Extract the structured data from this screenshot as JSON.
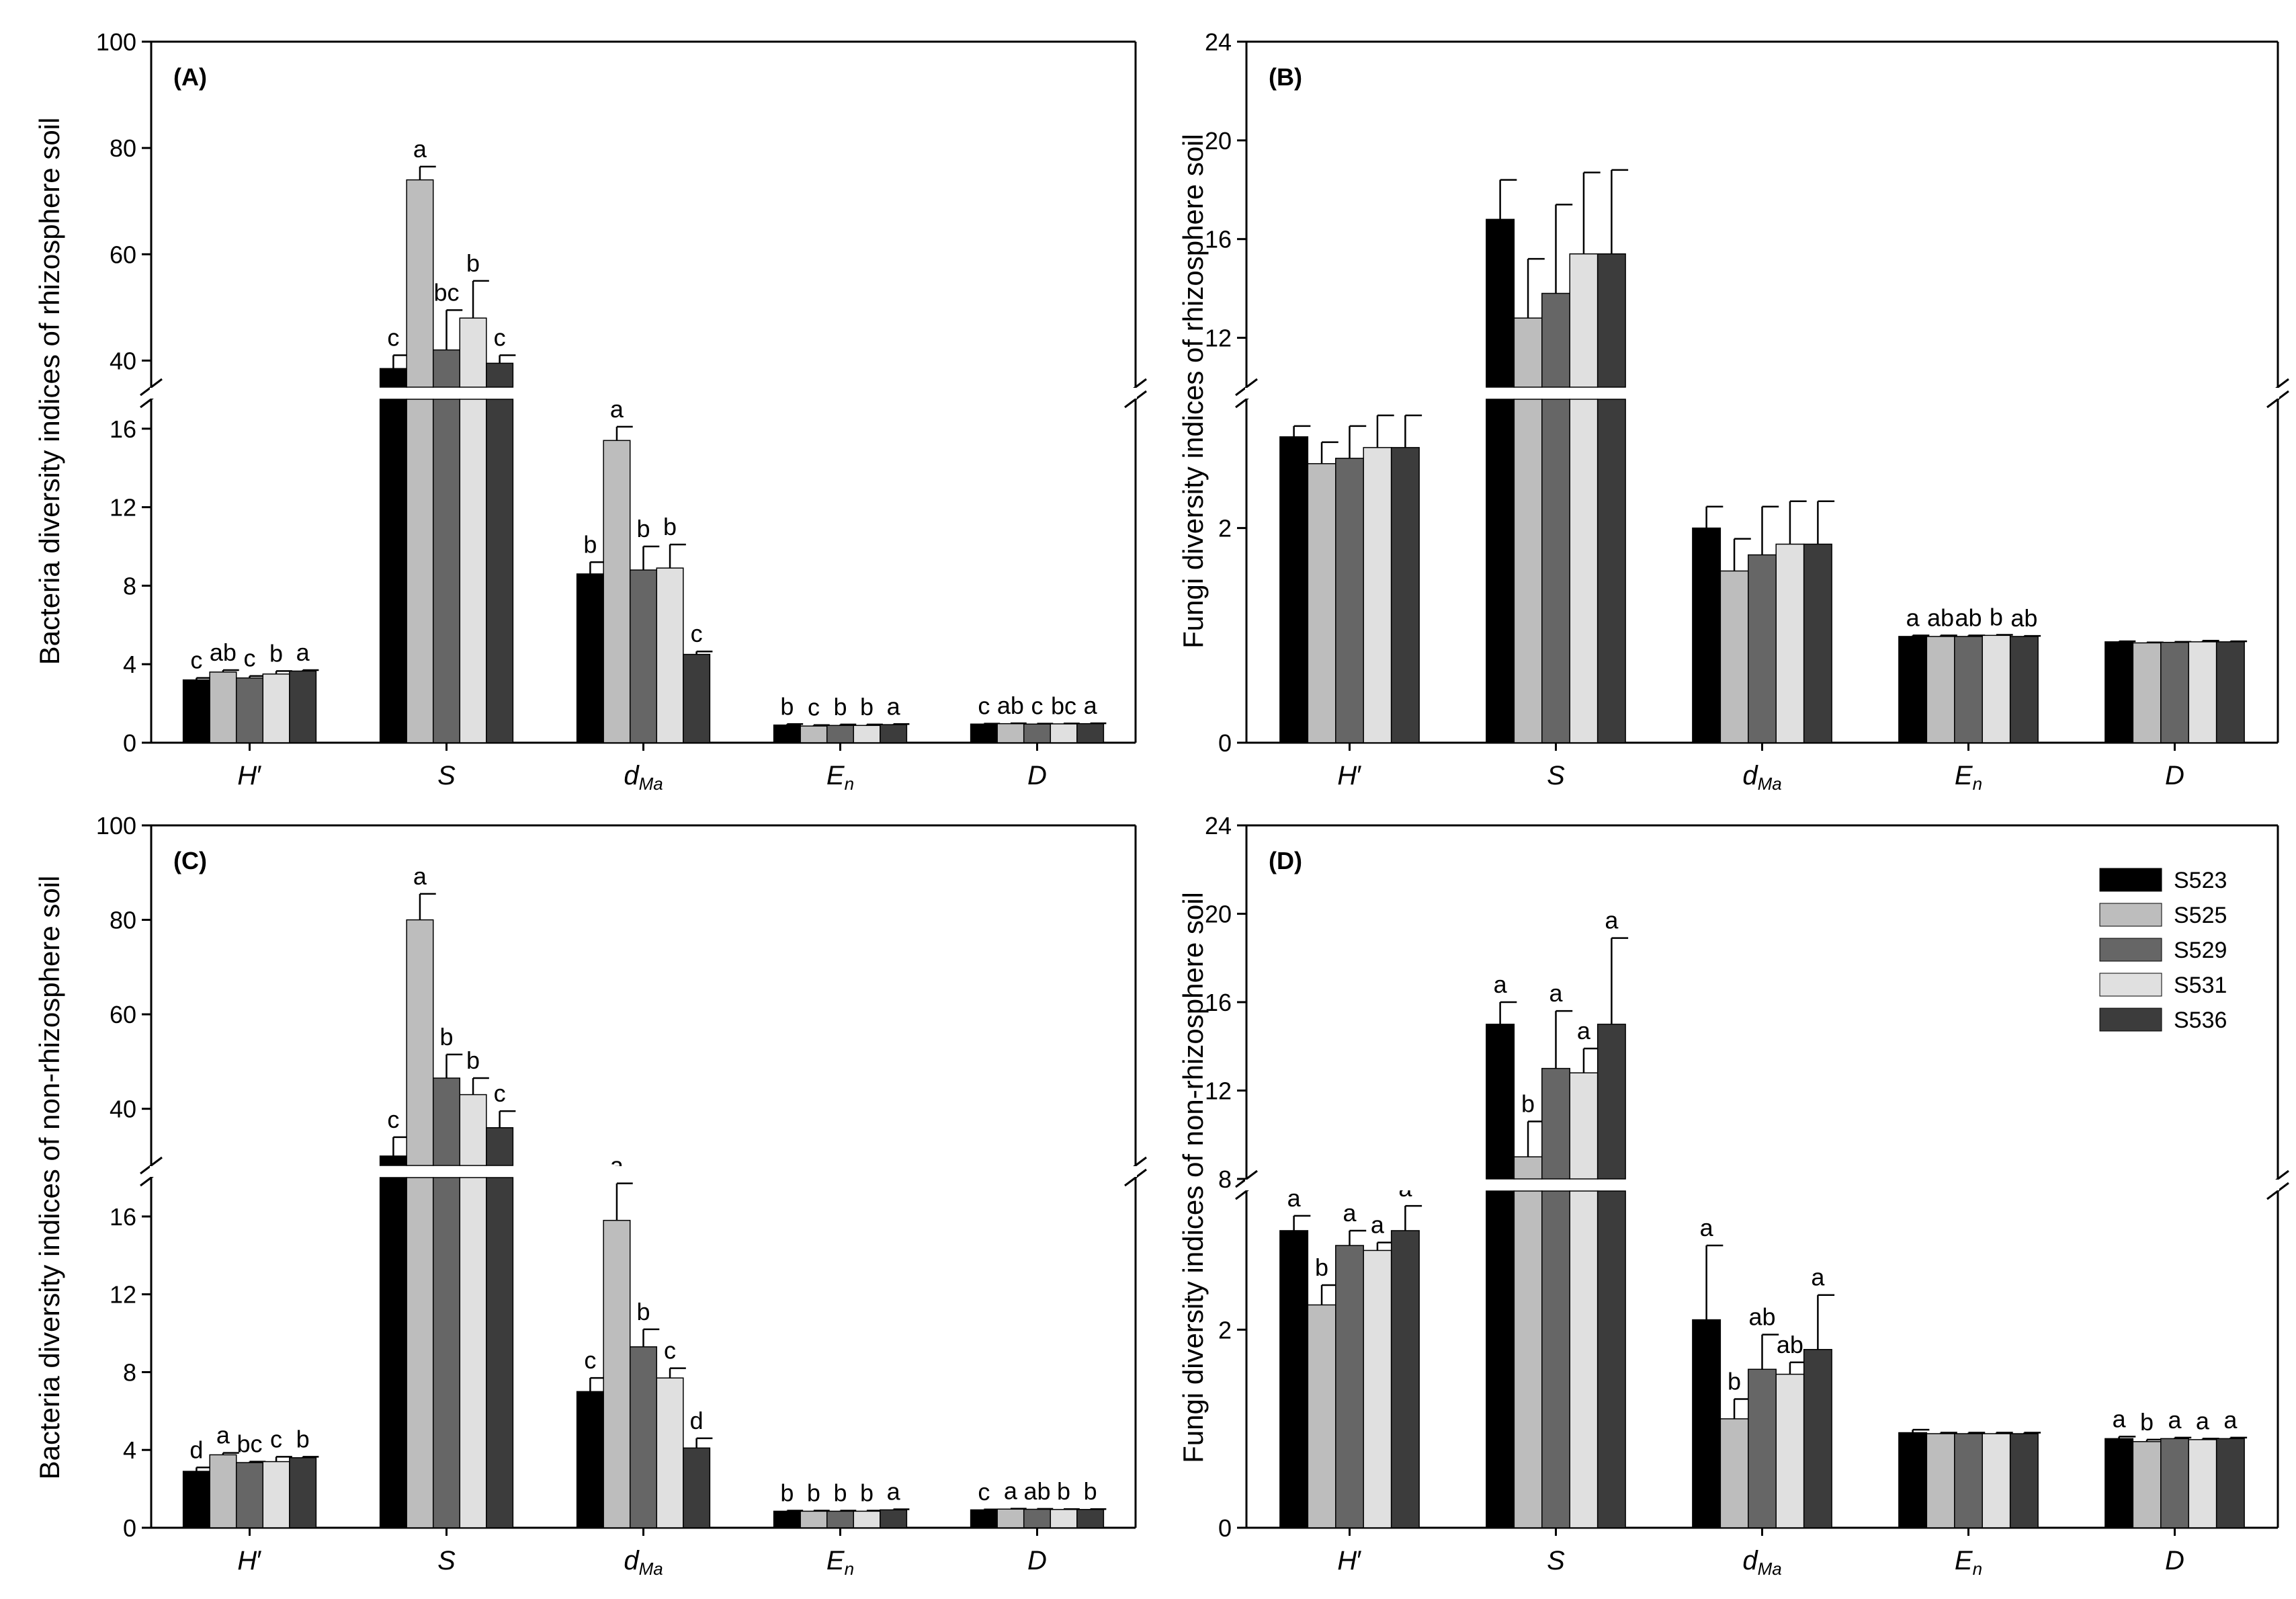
{
  "legend": {
    "series": [
      {
        "name": "S523",
        "color": "#000000"
      },
      {
        "name": "S525",
        "color": "#bdbdbd"
      },
      {
        "name": "S529",
        "color": "#666666"
      },
      {
        "name": "S531",
        "color": "#e0e0e0"
      },
      {
        "name": "S536",
        "color": "#3c3c3c"
      }
    ]
  },
  "chart_data": [
    {
      "panel": "(A)",
      "type": "bar",
      "ylabel": "Bacteria diversity indices of rhizosphere soil",
      "categories": [
        {
          "base": "H",
          "sub": "",
          "suffix": "′"
        },
        {
          "base": "S",
          "sub": "",
          "suffix": ""
        },
        {
          "base": "d",
          "sub": "Ma",
          "suffix": ""
        },
        {
          "base": "E",
          "sub": "n",
          "suffix": ""
        },
        {
          "base": "D",
          "sub": "",
          "suffix": ""
        }
      ],
      "lower_range": [
        0,
        17.5
      ],
      "upper_range": [
        35,
        100
      ],
      "lower_ticks": [
        0,
        4,
        8,
        12,
        16
      ],
      "upper_ticks": [
        40,
        60,
        80,
        100
      ],
      "series": [
        {
          "name": "S523",
          "values": [
            3.2,
            38.5,
            8.6,
            0.9,
            0.95
          ],
          "errors": [
            0.1,
            2.5,
            0.6,
            0.05,
            0.02
          ],
          "letters": [
            "c",
            "c",
            "b",
            "b",
            "c"
          ]
        },
        {
          "name": "S525",
          "values": [
            3.6,
            74,
            15.4,
            0.85,
            0.97
          ],
          "errors": [
            0.1,
            2.5,
            0.7,
            0.05,
            0.02
          ],
          "letters": [
            "ab",
            "a",
            "a",
            "c",
            "ab"
          ]
        },
        {
          "name": "S529",
          "values": [
            3.3,
            42,
            8.8,
            0.88,
            0.95
          ],
          "errors": [
            0.1,
            7.5,
            1.2,
            0.05,
            0.02
          ],
          "letters": [
            "c",
            "bc",
            "b",
            "b",
            "c"
          ]
        },
        {
          "name": "S531",
          "values": [
            3.5,
            48,
            8.9,
            0.88,
            0.96
          ],
          "errors": [
            0.15,
            7,
            1.2,
            0.05,
            0.02
          ],
          "letters": [
            "b",
            "b",
            "b",
            "b",
            "bc"
          ]
        },
        {
          "name": "S536",
          "values": [
            3.65,
            39.5,
            4.5,
            0.92,
            0.97
          ],
          "errors": [
            0.05,
            1.5,
            0.15,
            0.03,
            0.02
          ],
          "letters": [
            "a",
            "c",
            "c",
            "a",
            "a"
          ]
        }
      ]
    },
    {
      "panel": "(B)",
      "type": "bar",
      "ylabel": "Fungi diversity indices of rhizosphere soil",
      "categories": [
        {
          "base": "H",
          "sub": "",
          "suffix": "′"
        },
        {
          "base": "S",
          "sub": "",
          "suffix": ""
        },
        {
          "base": "d",
          "sub": "Ma",
          "suffix": ""
        },
        {
          "base": "E",
          "sub": "n",
          "suffix": ""
        },
        {
          "base": "D",
          "sub": "",
          "suffix": ""
        }
      ],
      "lower_range": [
        0,
        3.2
      ],
      "upper_range": [
        10,
        24
      ],
      "lower_ticks": [
        0,
        2
      ],
      "upper_ticks": [
        12,
        16,
        20,
        24
      ],
      "series": [
        {
          "name": "S523",
          "values": [
            2.85,
            16.8,
            2.0,
            0.99,
            0.94
          ],
          "errors": [
            0.1,
            1.6,
            0.2,
            0.01,
            0.005
          ],
          "letters": [
            "",
            "",
            "",
            "a",
            ""
          ]
        },
        {
          "name": "S525",
          "values": [
            2.6,
            12.8,
            1.6,
            0.99,
            0.93
          ],
          "errors": [
            0.2,
            2.4,
            0.3,
            0.01,
            0.005
          ],
          "letters": [
            "",
            "",
            "",
            "ab",
            ""
          ]
        },
        {
          "name": "S529",
          "values": [
            2.65,
            13.8,
            1.75,
            0.99,
            0.935
          ],
          "errors": [
            0.3,
            3.6,
            0.45,
            0.01,
            0.005
          ],
          "letters": [
            "",
            "",
            "",
            "ab",
            ""
          ]
        },
        {
          "name": "S531",
          "values": [
            2.75,
            15.4,
            1.85,
            1.0,
            0.94
          ],
          "errors": [
            0.3,
            3.3,
            0.4,
            0.005,
            0.01
          ],
          "letters": [
            "",
            "",
            "",
            "b",
            ""
          ]
        },
        {
          "name": "S536",
          "values": [
            2.75,
            15.4,
            1.85,
            0.99,
            0.94
          ],
          "errors": [
            0.3,
            3.4,
            0.4,
            0.005,
            0.005
          ],
          "letters": [
            "",
            "",
            "",
            "ab",
            ""
          ]
        }
      ]
    },
    {
      "panel": "(C)",
      "type": "bar",
      "ylabel": "Bacteria diversity indices of non-rhizosphere soil",
      "categories": [
        {
          "base": "H",
          "sub": "",
          "suffix": "′"
        },
        {
          "base": "S",
          "sub": "",
          "suffix": ""
        },
        {
          "base": "d",
          "sub": "Ma",
          "suffix": ""
        },
        {
          "base": "E",
          "sub": "n",
          "suffix": ""
        },
        {
          "base": "D",
          "sub": "",
          "suffix": ""
        }
      ],
      "lower_range": [
        0,
        18
      ],
      "upper_range": [
        28,
        100
      ],
      "lower_ticks": [
        0,
        4,
        8,
        12,
        16
      ],
      "upper_ticks": [
        40,
        60,
        80,
        100
      ],
      "series": [
        {
          "name": "S523",
          "values": [
            2.9,
            30,
            7.0,
            0.85,
            0.92
          ],
          "errors": [
            0.2,
            4,
            0.7,
            0.03,
            0.02
          ],
          "letters": [
            "d",
            "c",
            "c",
            "b",
            "c"
          ]
        },
        {
          "name": "S525",
          "values": [
            3.75,
            80,
            15.8,
            0.85,
            0.96
          ],
          "errors": [
            0.1,
            5.5,
            1.9,
            0.03,
            0.02
          ],
          "letters": [
            "a",
            "a",
            "a",
            "b",
            "a"
          ]
        },
        {
          "name": "S529",
          "values": [
            3.35,
            46.5,
            9.3,
            0.85,
            0.95
          ],
          "errors": [
            0.05,
            5,
            0.9,
            0.03,
            0.02
          ],
          "letters": [
            "bc",
            "b",
            "b",
            "b",
            "ab"
          ]
        },
        {
          "name": "S531",
          "values": [
            3.4,
            43,
            7.7,
            0.85,
            0.94
          ],
          "errors": [
            0.25,
            3.5,
            0.5,
            0.03,
            0.02
          ],
          "letters": [
            "c",
            "b",
            "c",
            "b",
            "b"
          ]
        },
        {
          "name": "S536",
          "values": [
            3.6,
            36,
            4.1,
            0.92,
            0.94
          ],
          "errors": [
            0.05,
            3.5,
            0.5,
            0.03,
            0.02
          ],
          "letters": [
            "b",
            "c",
            "d",
            "a",
            "b"
          ]
        }
      ]
    },
    {
      "panel": "(D)",
      "type": "bar",
      "ylabel": "Fungi diversity indices of non-rhizosphere soil",
      "categories": [
        {
          "base": "H",
          "sub": "",
          "suffix": "′"
        },
        {
          "base": "S",
          "sub": "",
          "suffix": ""
        },
        {
          "base": "d",
          "sub": "Ma",
          "suffix": ""
        },
        {
          "base": "E",
          "sub": "n",
          "suffix": ""
        },
        {
          "base": "D",
          "sub": "",
          "suffix": ""
        }
      ],
      "lower_range": [
        0,
        3.4
      ],
      "upper_range": [
        8,
        24
      ],
      "lower_ticks": [
        0,
        2
      ],
      "upper_ticks": [
        8,
        12,
        16,
        20,
        24
      ],
      "series": [
        {
          "name": "S523",
          "values": [
            3.0,
            15.0,
            2.1,
            0.96,
            0.9
          ],
          "errors": [
            0.15,
            1.0,
            0.75,
            0.03,
            0.02
          ],
          "letters": [
            "a",
            "a",
            "a",
            "",
            "a"
          ]
        },
        {
          "name": "S525",
          "values": [
            2.25,
            9.0,
            1.1,
            0.95,
            0.87
          ],
          "errors": [
            0.2,
            1.6,
            0.2,
            0.01,
            0.02
          ],
          "letters": [
            "b",
            "b",
            "b",
            "",
            "b"
          ]
        },
        {
          "name": "S529",
          "values": [
            2.85,
            13.0,
            1.6,
            0.95,
            0.9
          ],
          "errors": [
            0.15,
            2.6,
            0.35,
            0.01,
            0.01
          ],
          "letters": [
            "a",
            "a",
            "ab",
            "",
            "a"
          ]
        },
        {
          "name": "S531",
          "values": [
            2.8,
            12.8,
            1.55,
            0.95,
            0.89
          ],
          "errors": [
            0.08,
            1.1,
            0.12,
            0.01,
            0.01
          ],
          "letters": [
            "a",
            "a",
            "ab",
            "",
            "a"
          ]
        },
        {
          "name": "S536",
          "values": [
            3.0,
            15.0,
            1.8,
            0.95,
            0.9
          ],
          "errors": [
            0.25,
            3.9,
            0.55,
            0.01,
            0.01
          ],
          "letters": [
            "a",
            "a",
            "a",
            "",
            "a"
          ]
        }
      ]
    }
  ]
}
